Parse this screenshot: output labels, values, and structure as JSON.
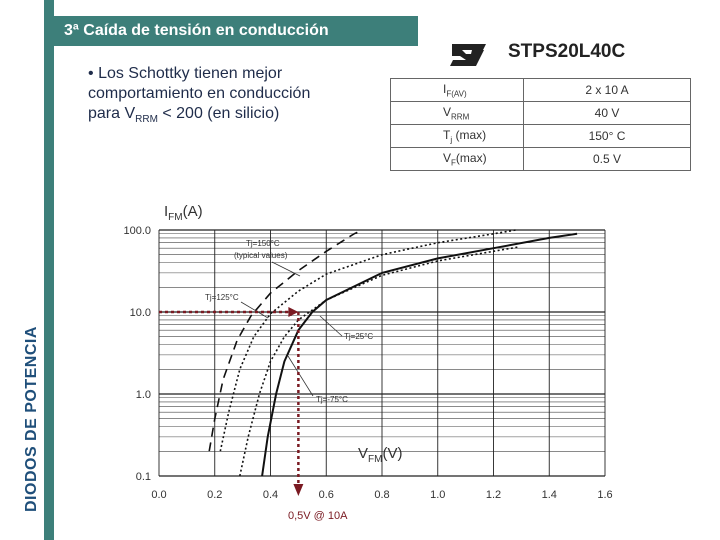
{
  "header": {
    "title": "3ª Caída de tensión en conducción"
  },
  "side_label": "DIODOS DE POTENCIA",
  "bullet": {
    "marker": "•",
    "line1": "Los Schottky tienen mejor",
    "line2": "comportamiento en conducción",
    "line3_pre": "para V",
    "line3_sub": "RRM",
    "line3_post": " < 200 (en silicio)"
  },
  "brand": {
    "logo_icon": "st-logo-icon",
    "part_number": "STPS20L40C"
  },
  "spec_table": [
    {
      "sym": "I",
      "sub": "F(AV)",
      "suffix": "",
      "value": "2 x 10 A"
    },
    {
      "sym": "V",
      "sub": "RRM",
      "suffix": "",
      "value": "40 V"
    },
    {
      "sym": "T",
      "sub": "j",
      "suffix": " (max)",
      "value": "150° C"
    },
    {
      "sym": "V",
      "sub": "F",
      "suffix": "(max)",
      "value": "0.5 V"
    }
  ],
  "colors": {
    "accent": "#3d7f7a",
    "side_text": "#1f4f7a",
    "marker": "#7a1a22"
  },
  "chart_data": {
    "type": "line",
    "ylabel": {
      "sym": "I",
      "sub": "FM",
      "unit": "(A)"
    },
    "xlabel": {
      "sym": "V",
      "sub": "FM",
      "unit": "(V)"
    },
    "x_ticks": [
      "0.0",
      "0.2",
      "0.4",
      "0.6",
      "0.8",
      "1.0",
      "1.2",
      "1.4",
      "1.6"
    ],
    "y_ticks": [
      "100.0",
      "10.0",
      "1.0",
      "0.1"
    ],
    "xlim": [
      0,
      1.6
    ],
    "ylim": [
      0.1,
      100
    ],
    "y_scale": "log",
    "series": [
      {
        "name": "Tj=150°C (typical values)",
        "style": "dashed",
        "points": [
          [
            0.18,
            0.2
          ],
          [
            0.2,
            0.5
          ],
          [
            0.23,
            1.5
          ],
          [
            0.28,
            4.5
          ],
          [
            0.33,
            9
          ],
          [
            0.4,
            17
          ],
          [
            0.5,
            32
          ],
          [
            0.6,
            55
          ],
          [
            0.7,
            90
          ],
          [
            0.73,
            100
          ]
        ]
      },
      {
        "name": "Tj=125°C",
        "style": "dotted",
        "points": [
          [
            0.22,
            0.2
          ],
          [
            0.25,
            0.6
          ],
          [
            0.29,
            2
          ],
          [
            0.34,
            5
          ],
          [
            0.4,
            9.5
          ],
          [
            0.5,
            18
          ],
          [
            0.6,
            29
          ],
          [
            0.8,
            50
          ],
          [
            1.0,
            70
          ],
          [
            1.2,
            90
          ],
          [
            1.28,
            100
          ]
        ]
      },
      {
        "name": "Tj=25°C",
        "style": "solid",
        "points": [
          [
            0.37,
            0.1
          ],
          [
            0.39,
            0.3
          ],
          [
            0.42,
            1
          ],
          [
            0.45,
            2.5
          ],
          [
            0.5,
            6
          ],
          [
            0.55,
            10
          ],
          [
            0.6,
            14
          ],
          [
            0.8,
            30
          ],
          [
            1.0,
            45
          ],
          [
            1.2,
            60
          ],
          [
            1.4,
            80
          ],
          [
            1.5,
            90
          ]
        ]
      },
      {
        "name": "Tj=-75°C",
        "style": "dotted",
        "points": [
          [
            0.29,
            0.1
          ],
          [
            0.32,
            0.3
          ],
          [
            0.36,
            1
          ],
          [
            0.4,
            2.5
          ],
          [
            0.45,
            5
          ],
          [
            0.5,
            8
          ],
          [
            0.6,
            14
          ],
          [
            0.8,
            28
          ],
          [
            1.0,
            42
          ],
          [
            1.2,
            55
          ],
          [
            1.29,
            62
          ]
        ]
      }
    ],
    "operating_point": {
      "x": 0.5,
      "y": 10,
      "label": "0,5V @ 10A"
    }
  }
}
